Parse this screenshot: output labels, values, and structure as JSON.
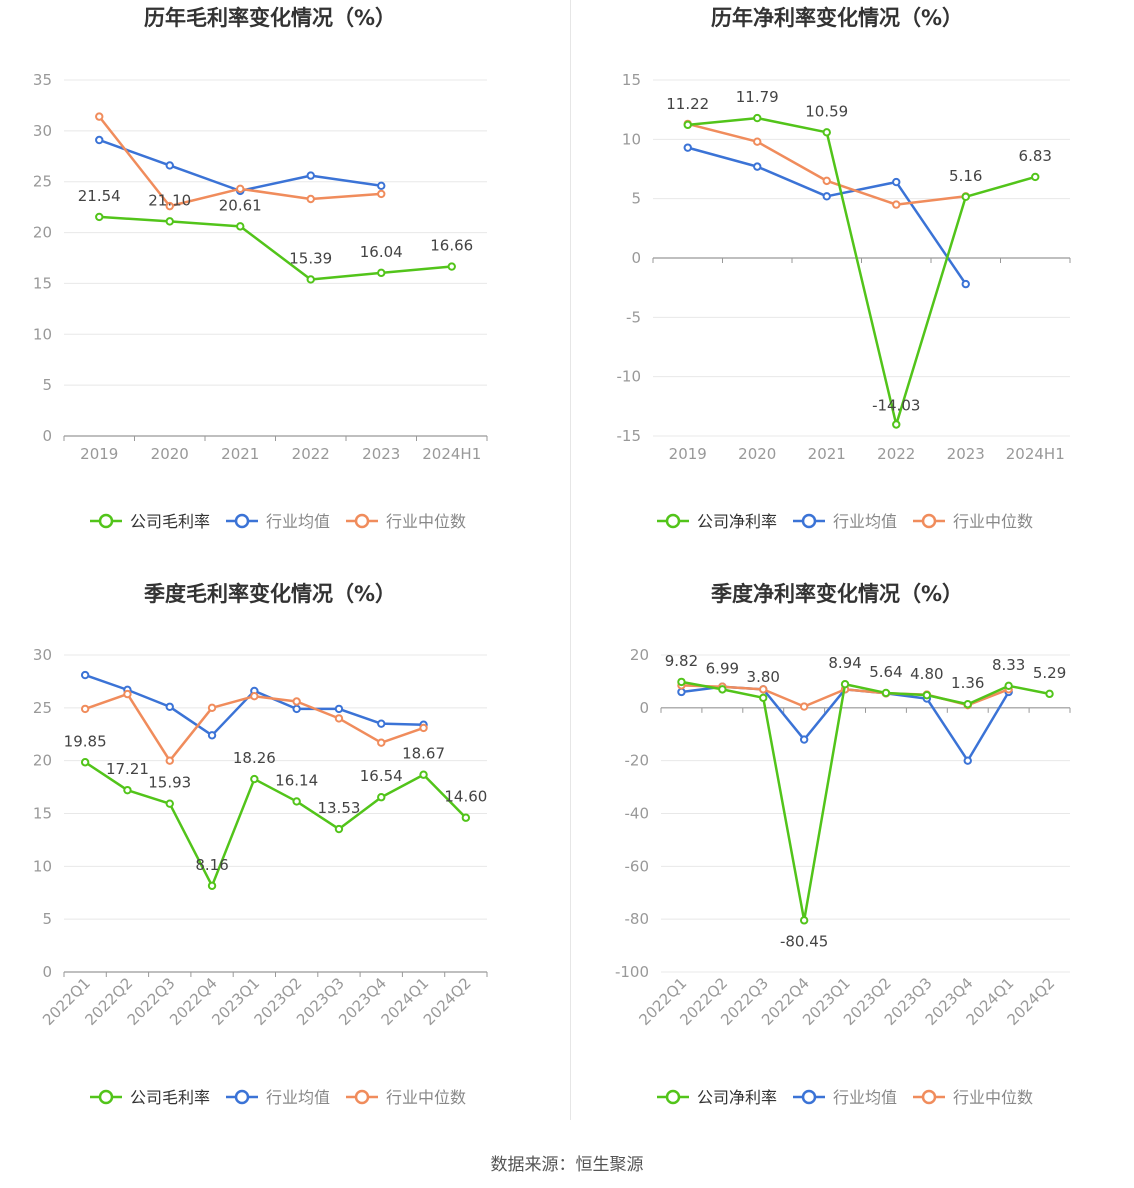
{
  "colors": {
    "company": "#52c41a",
    "avg": "#3b73d6",
    "median": "#f08c5c",
    "axis": "#999999",
    "grid": "#e8e8e8",
    "text": "#333333"
  },
  "source": "数据来源：恒生聚源",
  "chart_data": [
    {
      "type": "line",
      "title": "历年毛利率变化情况（%）",
      "categories": [
        "2019",
        "2020",
        "2021",
        "2022",
        "2023",
        "2024H1"
      ],
      "ylim": [
        0,
        35
      ],
      "yticks": [
        0,
        5,
        10,
        15,
        20,
        25,
        30,
        35
      ],
      "series": [
        {
          "name": "公司毛利率",
          "role": "company",
          "values": [
            21.54,
            21.1,
            20.61,
            15.39,
            16.04,
            16.66
          ],
          "labels": [
            "21.54",
            "21.10",
            "20.61",
            "15.39",
            "16.04",
            "16.66"
          ]
        },
        {
          "name": "行业均值",
          "role": "avg",
          "values": [
            29.1,
            26.6,
            24.1,
            25.6,
            24.6,
            null
          ]
        },
        {
          "name": "行业中位数",
          "role": "median",
          "values": [
            31.4,
            22.6,
            24.3,
            23.3,
            23.8,
            null
          ]
        }
      ]
    },
    {
      "type": "line",
      "title": "历年净利率变化情况（%）",
      "categories": [
        "2019",
        "2020",
        "2021",
        "2022",
        "2023",
        "2024H1"
      ],
      "ylim": [
        -15,
        15
      ],
      "yticks": [
        -15,
        -10,
        -5,
        0,
        5,
        10,
        15
      ],
      "series": [
        {
          "name": "公司净利率",
          "role": "company",
          "values": [
            11.22,
            11.79,
            10.59,
            -14.03,
            5.16,
            6.83
          ],
          "labels": [
            "11.22",
            "11.79",
            "10.59",
            "-14.03",
            "5.16",
            "6.83"
          ]
        },
        {
          "name": "行业均值",
          "role": "avg",
          "values": [
            9.3,
            7.7,
            5.2,
            6.4,
            -2.2,
            null
          ]
        },
        {
          "name": "行业中位数",
          "role": "median",
          "values": [
            11.3,
            9.8,
            6.5,
            4.5,
            5.2,
            null
          ]
        }
      ]
    },
    {
      "type": "line",
      "title": "季度毛利率变化情况（%）",
      "categories": [
        "2022Q1",
        "2022Q2",
        "2022Q3",
        "2022Q4",
        "2023Q1",
        "2023Q2",
        "2023Q3",
        "2023Q4",
        "2024Q1",
        "2024Q2"
      ],
      "ylim": [
        0,
        30
      ],
      "yticks": [
        0,
        5,
        10,
        15,
        20,
        25,
        30
      ],
      "series": [
        {
          "name": "公司毛利率",
          "role": "company",
          "values": [
            19.85,
            17.21,
            15.93,
            8.16,
            18.26,
            16.14,
            13.53,
            16.54,
            18.67,
            14.6
          ],
          "labels": [
            "19.85",
            "17.21",
            "15.93",
            "8.16",
            "18.26",
            "16.14",
            "13.53",
            "16.54",
            "18.67",
            "14.60"
          ]
        },
        {
          "name": "行业均值",
          "role": "avg",
          "values": [
            28.1,
            26.7,
            25.1,
            22.4,
            26.6,
            24.9,
            24.9,
            23.5,
            23.4,
            null
          ]
        },
        {
          "name": "行业中位数",
          "role": "median",
          "values": [
            24.9,
            26.3,
            20.0,
            25.0,
            26.1,
            25.6,
            24.0,
            21.7,
            23.1,
            null
          ]
        }
      ]
    },
    {
      "type": "line",
      "title": "季度净利率变化情况（%）",
      "categories": [
        "2022Q1",
        "2022Q2",
        "2022Q3",
        "2022Q4",
        "2023Q1",
        "2023Q2",
        "2023Q3",
        "2023Q4",
        "2024Q1",
        "2024Q2"
      ],
      "ylim": [
        -100,
        20
      ],
      "yticks": [
        -100,
        -80,
        -60,
        -40,
        -20,
        0,
        20
      ],
      "series": [
        {
          "name": "公司净利率",
          "role": "company",
          "values": [
            9.82,
            6.99,
            3.8,
            -80.45,
            8.94,
            5.64,
            4.8,
            1.36,
            8.33,
            5.29
          ],
          "labels": [
            "9.82",
            "6.99",
            "3.80",
            "-80.45",
            "8.94",
            "5.64",
            "4.80",
            "1.36",
            "8.33",
            "5.29"
          ]
        },
        {
          "name": "行业均值",
          "role": "avg",
          "values": [
            6.0,
            8.0,
            7.0,
            -12.0,
            7.0,
            5.5,
            3.5,
            -20.0,
            6.0,
            null
          ]
        },
        {
          "name": "行业中位数",
          "role": "median",
          "values": [
            8.5,
            8.0,
            7.0,
            0.5,
            7.0,
            5.5,
            5.0,
            1.0,
            7.0,
            null
          ]
        }
      ]
    }
  ]
}
